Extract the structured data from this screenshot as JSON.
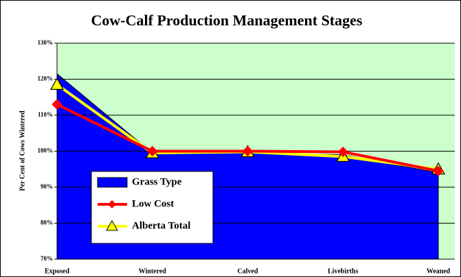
{
  "chart_data": {
    "type": "area-line",
    "title": "Cow-Calf Production Management Stages",
    "y_label": "Per Cent of Cows Wintered",
    "categories": [
      "Exposed",
      "Wintered",
      "Calved",
      "Livebirths",
      "Weaned"
    ],
    "series": [
      {
        "name": "Grass Type",
        "color": "#0000ff",
        "style": "area",
        "values": [
          121.5,
          99.5,
          99.5,
          99,
          94
        ]
      },
      {
        "name": "Low Cost",
        "color": "#ff0000",
        "style": "line",
        "marker": "diamond",
        "values": [
          113,
          100,
          100,
          99.8,
          94.5
        ]
      },
      {
        "name": "Alberta Total",
        "color": "#ffff00",
        "style": "line",
        "marker": "triangle",
        "values": [
          118.5,
          99.5,
          99.8,
          98.5,
          95
        ]
      }
    ],
    "ylim": [
      70,
      130
    ],
    "yticks": [
      {
        "value": 70,
        "label": "70%"
      },
      {
        "value": 80,
        "label": "80%"
      },
      {
        "value": 90,
        "label": "90%"
      },
      {
        "value": 100,
        "label": "100%"
      },
      {
        "value": 110,
        "label": "110%"
      },
      {
        "value": 120,
        "label": "120%"
      },
      {
        "value": 130,
        "label": "130%"
      }
    ],
    "grid": true,
    "plot_background": "#ccffcc"
  }
}
